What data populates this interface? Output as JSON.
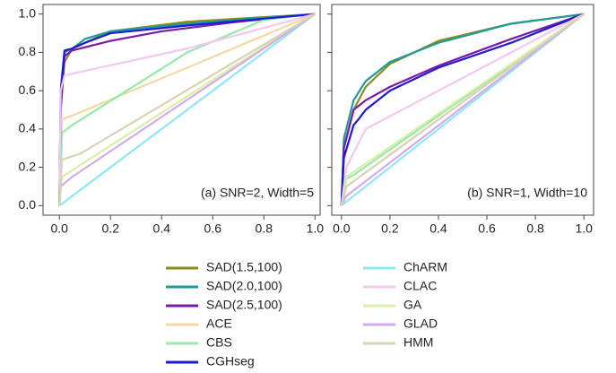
{
  "chart_data": [
    {
      "type": "line",
      "annotation": "(a) SNR=2, Width=5",
      "xlim": [
        -0.064,
        1.02
      ],
      "ylim": [
        -0.05,
        1.05
      ],
      "xticks": [
        {
          "value": 0,
          "label": "0.0"
        },
        {
          "value": 0.2,
          "label": "0.2"
        },
        {
          "value": 0.4,
          "label": "0.4"
        },
        {
          "value": 0.6,
          "label": "0.6"
        },
        {
          "value": 0.8,
          "label": "0.8"
        },
        {
          "value": 1,
          "label": "1.0"
        }
      ],
      "yticks": [
        {
          "value": 0,
          "label": "0.0"
        },
        {
          "value": 0.2,
          "label": "0.2"
        },
        {
          "value": 0.4,
          "label": "0.4"
        },
        {
          "value": 0.6,
          "label": "0.6"
        },
        {
          "value": 0.8,
          "label": "0.8"
        },
        {
          "value": 1,
          "label": "1.0"
        }
      ],
      "series": [
        {
          "name": "SAD(1.5,100)",
          "color": "#8c8c1c",
          "x": [
            0,
            0.005,
            0.02,
            0.05,
            0.2,
            0.5,
            1
          ],
          "values": [
            0,
            0.5,
            0.75,
            0.82,
            0.91,
            0.96,
            1
          ]
        },
        {
          "name": "SAD(2.0,100)",
          "color": "#1e9a9a",
          "x": [
            0,
            0.005,
            0.02,
            0.05,
            0.1,
            0.2,
            0.5,
            1
          ],
          "values": [
            0,
            0.55,
            0.8,
            0.82,
            0.87,
            0.91,
            0.95,
            1
          ]
        },
        {
          "name": "SAD(2.5,100)",
          "color": "#7a1aa8",
          "x": [
            0,
            0.005,
            0.02,
            0.05,
            0.2,
            0.4,
            0.7,
            1
          ],
          "values": [
            0,
            0.5,
            0.78,
            0.81,
            0.86,
            0.91,
            0.96,
            1
          ]
        },
        {
          "name": "ACE",
          "color": "#f3d9a4",
          "x": [
            0,
            0.01,
            0.05,
            0.5,
            1
          ],
          "values": [
            0,
            0.45,
            0.47,
            0.72,
            1
          ]
        },
        {
          "name": "CBS",
          "color": "#92eba8",
          "x": [
            0,
            0.01,
            0.05,
            0.5,
            0.8,
            1
          ],
          "values": [
            0,
            0.38,
            0.42,
            0.8,
            0.97,
            1
          ]
        },
        {
          "name": "CGHseg",
          "color": "#1a1ad8",
          "x": [
            0,
            0.005,
            0.02,
            0.05,
            0.1,
            0.2,
            0.5,
            1
          ],
          "values": [
            0,
            0.6,
            0.81,
            0.82,
            0.85,
            0.9,
            0.94,
            1
          ]
        },
        {
          "name": "ChARM",
          "color": "#8ee8f2",
          "x": [
            0,
            1
          ],
          "values": [
            0,
            1
          ]
        },
        {
          "name": "CLAC",
          "color": "#f2c8f2",
          "x": [
            0,
            0.005,
            0.02,
            0.5,
            1
          ],
          "values": [
            0,
            0.6,
            0.68,
            0.82,
            1
          ]
        },
        {
          "name": "GA",
          "color": "#d8f0a4",
          "x": [
            0,
            0.01,
            1
          ],
          "values": [
            0,
            0.15,
            1
          ]
        },
        {
          "name": "GLAD",
          "color": "#d2aaf2",
          "x": [
            0,
            0.005,
            0.05,
            1
          ],
          "values": [
            0,
            0.1,
            0.15,
            1
          ]
        },
        {
          "name": "HMM",
          "color": "#dad2b2",
          "x": [
            0,
            0.01,
            0.08,
            1
          ],
          "values": [
            0,
            0.24,
            0.27,
            1
          ]
        }
      ]
    },
    {
      "type": "line",
      "annotation": "(b) SNR=1, Width=10",
      "xlim": [
        -0.04,
        1.04
      ],
      "ylim": [
        -0.05,
        1.05
      ],
      "xticks": [
        {
          "value": 0,
          "label": "0.0"
        },
        {
          "value": 0.2,
          "label": "0.2"
        },
        {
          "value": 0.4,
          "label": "0.4"
        },
        {
          "value": 0.6,
          "label": "0.6"
        },
        {
          "value": 0.8,
          "label": "0.8"
        },
        {
          "value": 1,
          "label": "1.0"
        }
      ],
      "yticks": [
        0,
        0.2,
        0.4,
        0.6,
        0.8,
        1
      ],
      "series": [
        {
          "color": "#8c8c1c",
          "x": [
            0,
            0.01,
            0.05,
            0.1,
            0.2,
            0.4,
            0.7,
            1
          ],
          "values": [
            0,
            0.3,
            0.5,
            0.62,
            0.74,
            0.86,
            0.95,
            1
          ]
        },
        {
          "color": "#1e9a9a",
          "x": [
            0,
            0.01,
            0.05,
            0.1,
            0.2,
            0.4,
            0.7,
            1
          ],
          "values": [
            0,
            0.35,
            0.55,
            0.65,
            0.75,
            0.85,
            0.95,
            1
          ]
        },
        {
          "color": "#7a1aa8",
          "x": [
            0,
            0.01,
            0.05,
            0.1,
            0.2,
            0.4,
            0.7,
            1
          ],
          "values": [
            0,
            0.3,
            0.5,
            0.55,
            0.62,
            0.73,
            0.87,
            1
          ]
        },
        {
          "color": "#f3d9a4",
          "x": [
            0,
            0.02,
            1
          ],
          "values": [
            0,
            0.1,
            1
          ]
        },
        {
          "color": "#92eba8",
          "x": [
            0,
            0.02,
            0.05,
            1
          ],
          "values": [
            0,
            0.14,
            0.16,
            1
          ]
        },
        {
          "color": "#1a1ad8",
          "x": [
            0,
            0.01,
            0.05,
            0.07,
            0.1,
            0.2,
            0.4,
            0.7,
            1
          ],
          "values": [
            0,
            0.25,
            0.42,
            0.45,
            0.5,
            0.6,
            0.72,
            0.85,
            1
          ]
        },
        {
          "color": "#8ee8f2",
          "x": [
            0,
            1
          ],
          "values": [
            0,
            1
          ]
        },
        {
          "color": "#f2c8f2",
          "x": [
            0,
            0.02,
            0.1,
            1
          ],
          "values": [
            0,
            0.2,
            0.4,
            1
          ]
        },
        {
          "color": "#d8f0a4",
          "x": [
            0,
            0.02,
            1
          ],
          "values": [
            0,
            0.15,
            1
          ]
        },
        {
          "color": "#d2aaf2",
          "x": [
            0,
            0.02,
            1
          ],
          "values": [
            0,
            0.05,
            1
          ]
        },
        {
          "color": "#dad2b2",
          "x": [
            0,
            0.02,
            1
          ],
          "values": [
            0,
            0.1,
            1
          ]
        }
      ]
    }
  ]
}
